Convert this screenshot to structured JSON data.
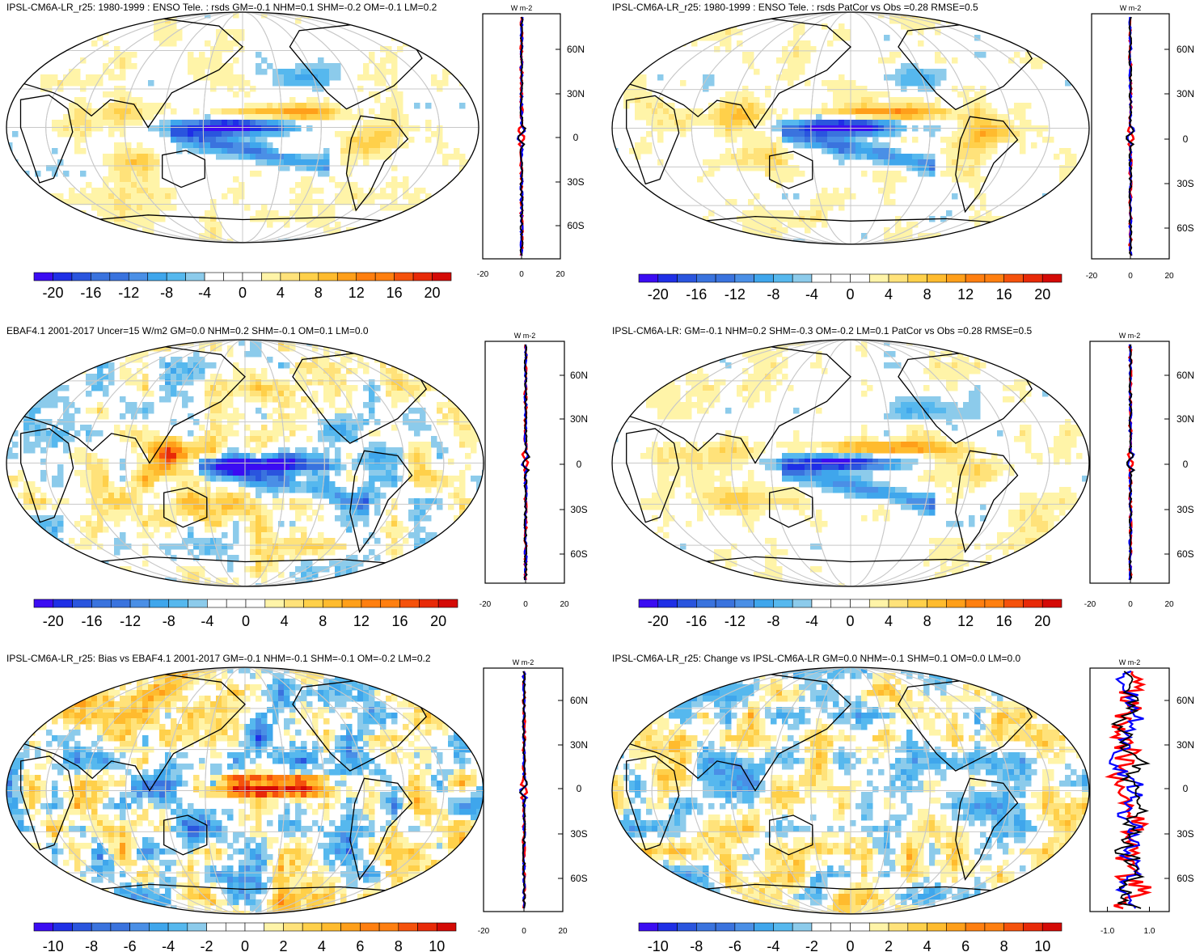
{
  "figure": {
    "panels": [
      {
        "id": "model",
        "title": "IPSL-CM6A-LR_r25: 1980-1999 : ENSO Tele. : rsds GM=-0.1 NHM=0.1 SHM=-0.2 OM=-0.1 LM=0.2",
        "colorbar": {
          "levels": [
            -20,
            -16,
            -12,
            -8,
            -4,
            0,
            4,
            8,
            12,
            16,
            20
          ]
        },
        "profile": {
          "unit": "W m-2",
          "xlim": [
            -20,
            20
          ],
          "x_ticks": [
            "-20",
            "0",
            "20"
          ]
        }
      },
      {
        "id": "model-vs-obs",
        "title": "IPSL-CM6A-LR_r25: 1980-1999 : ENSO Tele. : rsds PatCor vs Obs =0.28 RMSE=0.5",
        "colorbar": {
          "levels": [
            -20,
            -16,
            -12,
            -8,
            -4,
            0,
            4,
            8,
            12,
            16,
            20
          ]
        },
        "profile": {
          "unit": "W m-2",
          "xlim": [
            -20,
            20
          ],
          "x_ticks": [
            "-20",
            "0",
            "20"
          ]
        }
      },
      {
        "id": "obs",
        "title": "EBAF4.1 2001-2017 Uncer=15 W/m2 GM=0.0 NHM=0.2 SHM=-0.1 OM=0.1 LM=0.0",
        "colorbar": {
          "levels": [
            -20,
            -16,
            -12,
            -8,
            -4,
            0,
            4,
            8,
            12,
            16,
            20
          ]
        },
        "profile": {
          "unit": "W m-2",
          "xlim": [
            -20,
            20
          ],
          "x_ticks": [
            "-20",
            "0",
            "20"
          ]
        }
      },
      {
        "id": "reference-model",
        "title": "IPSL-CM6A-LR: GM=-0.1 NHM=0.2 SHM=-0.3 OM=-0.2 LM=0.1 PatCor vs Obs =0.28 RMSE=0.5",
        "colorbar": {
          "levels": [
            -20,
            -16,
            -12,
            -8,
            -4,
            0,
            4,
            8,
            12,
            16,
            20
          ]
        },
        "profile": {
          "unit": "W m-2",
          "xlim": [
            -20,
            20
          ],
          "x_ticks": [
            "-20",
            "0",
            "20"
          ]
        }
      },
      {
        "id": "bias",
        "title": "IPSL-CM6A-LR_r25: Bias vs EBAF4.1 2001-2017 GM=-0.1 NHM=-0.1 SHM=-0.1 OM=-0.2 LM=0.2",
        "colorbar": {
          "levels": [
            -10,
            -8,
            -6,
            -4,
            -2,
            0,
            2,
            4,
            6,
            8,
            10
          ]
        },
        "profile": {
          "unit": "W m-2",
          "xlim": [
            -20,
            20
          ],
          "x_ticks": [
            "-20",
            "0",
            "20"
          ]
        }
      },
      {
        "id": "change",
        "title": "IPSL-CM6A-LR_r25: Change vs IPSL-CM6A-LR GM=0.0 NHM=-0.1 SHM=0.1 OM=0.0 LM=0.0",
        "colorbar": {
          "levels": [
            -10,
            -8,
            -6,
            -4,
            -2,
            0,
            2,
            4,
            6,
            8,
            10
          ]
        },
        "profile": {
          "unit": "W m-2",
          "xlim": [
            -1.6,
            1.6
          ],
          "x_ticks": [
            "-1.0",
            "1.0"
          ]
        }
      }
    ],
    "lat_ticks": [
      "60N",
      "30N",
      "0",
      "30S",
      "60S"
    ],
    "colormap": [
      "#3b0cf2",
      "#1f2fe6",
      "#2a55de",
      "#3a73de",
      "#4a8fe6",
      "#3fa6ec",
      "#56b8ee",
      "#8ccbeb",
      "#ffffff",
      "#ffffff",
      "#fff4a8",
      "#ffe27a",
      "#ffd04a",
      "#ffbb2e",
      "#ff9f1a",
      "#ff7f10",
      "#f5520c",
      "#e82a08",
      "#d40a06"
    ],
    "profile_line_colors": {
      "model": "#0000ff",
      "obs": "#ff0000",
      "reference": "#000000"
    }
  }
}
